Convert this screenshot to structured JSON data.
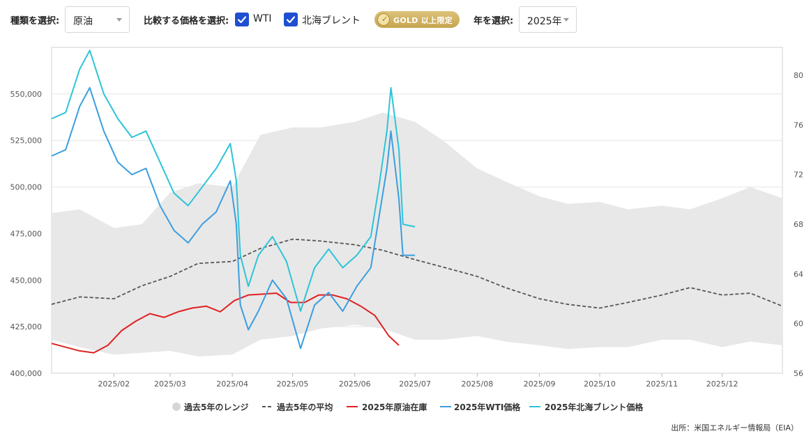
{
  "toolbar": {
    "type_label": "種類を選択:",
    "type_value": "原油",
    "compare_label": "比較する価格を選択:",
    "wti_label": "WTI",
    "brent_label": "北海ブレント",
    "gold_badge": "GOLD 以上限定",
    "year_label": "年を選択:",
    "year_value": "2025年"
  },
  "source": "出所：米国エネルギー情報局（EIA）",
  "colors": {
    "range": "#e8e8e8",
    "avg": "#555555",
    "inventory": "#e02020",
    "wti": "#3a9ee0",
    "brent": "#2cc4d8",
    "check": "#1f4fd1"
  },
  "chart_data": {
    "type": "line",
    "x_axis": {
      "type": "date",
      "range": [
        "2025-01-01",
        "2025-12-31"
      ],
      "tick_labels": [
        "2025/02",
        "2025/03",
        "2025/04",
        "2025/05",
        "2025/06",
        "2025/07",
        "2025/08",
        "2025/09",
        "2025/10",
        "2025/11",
        "2025/12"
      ],
      "tick_dates": [
        "2025-02-01",
        "2025-03-01",
        "2025-04-01",
        "2025-05-01",
        "2025-06-01",
        "2025-07-01",
        "2025-08-01",
        "2025-09-01",
        "2025-10-01",
        "2025-11-01",
        "2025-12-01"
      ]
    },
    "y_left": {
      "range": [
        400000,
        575000
      ],
      "tick_values": [
        400000,
        425000,
        450000,
        475000,
        500000,
        525000,
        550000
      ],
      "tick_labels": [
        "400,000",
        "425,000",
        "450,000",
        "475,000",
        "500,000",
        "525,000",
        "550,000"
      ]
    },
    "y_right": {
      "range": [
        56,
        82.25
      ],
      "tick_values": [
        56,
        60,
        64,
        68,
        72,
        76,
        80
      ],
      "tick_labels": [
        "56",
        "60",
        "64",
        "68",
        "72",
        "76",
        "80"
      ]
    },
    "grid": true,
    "legend_position": "bottom-center",
    "legend": [
      {
        "key": "range",
        "label": "過去5年のレンジ"
      },
      {
        "key": "avg",
        "label": "過去5年の平均"
      },
      {
        "key": "inventory",
        "label": "2025年原油在庫"
      },
      {
        "key": "wti",
        "label": "2025年WTI価格"
      },
      {
        "key": "brent",
        "label": "2025年北海ブレント価格"
      }
    ],
    "series": [
      {
        "key": "range",
        "name": "過去5年のレンジ",
        "kind": "band",
        "axis": "left",
        "x": [
          "2025-01-01",
          "2025-01-15",
          "2025-02-01",
          "2025-02-15",
          "2025-03-01",
          "2025-03-15",
          "2025-04-01",
          "2025-04-15",
          "2025-05-01",
          "2025-05-15",
          "2025-06-01",
          "2025-06-15",
          "2025-07-01",
          "2025-07-15",
          "2025-08-01",
          "2025-08-15",
          "2025-09-01",
          "2025-09-15",
          "2025-10-01",
          "2025-10-15",
          "2025-11-01",
          "2025-11-15",
          "2025-12-01",
          "2025-12-15",
          "2025-12-31"
        ],
        "low": [
          418000,
          414000,
          410000,
          411000,
          412000,
          409000,
          410000,
          418000,
          420000,
          424000,
          426000,
          424000,
          418000,
          418000,
          420000,
          417000,
          415000,
          413000,
          414000,
          414000,
          418000,
          418000,
          414000,
          417000,
          415000
        ],
        "high": [
          486000,
          488000,
          478000,
          480000,
          497000,
          502000,
          500000,
          528000,
          532000,
          532000,
          535000,
          540000,
          535000,
          525000,
          510000,
          503000,
          495000,
          491000,
          492000,
          488000,
          490000,
          488000,
          494000,
          500000,
          494000
        ]
      },
      {
        "key": "avg",
        "name": "過去5年の平均",
        "kind": "line",
        "dashed": true,
        "axis": "left",
        "x": [
          "2025-01-01",
          "2025-01-15",
          "2025-02-01",
          "2025-02-15",
          "2025-03-01",
          "2025-03-15",
          "2025-04-01",
          "2025-04-15",
          "2025-05-01",
          "2025-05-15",
          "2025-06-01",
          "2025-06-15",
          "2025-07-01",
          "2025-07-15",
          "2025-08-01",
          "2025-08-15",
          "2025-09-01",
          "2025-09-15",
          "2025-10-01",
          "2025-10-15",
          "2025-11-01",
          "2025-11-15",
          "2025-12-01",
          "2025-12-15",
          "2025-12-31"
        ],
        "values": [
          437000,
          441000,
          440000,
          447000,
          452000,
          459000,
          460000,
          467000,
          472000,
          471000,
          469000,
          466000,
          461000,
          457000,
          452000,
          446000,
          440000,
          437000,
          435000,
          438000,
          442000,
          446000,
          442000,
          443000,
          436000
        ]
      },
      {
        "key": "inventory",
        "name": "2025年原油在庫",
        "kind": "line",
        "axis": "left",
        "x": [
          "2025-01-01",
          "2025-01-08",
          "2025-01-15",
          "2025-01-22",
          "2025-01-29",
          "2025-02-05",
          "2025-02-12",
          "2025-02-19",
          "2025-02-26",
          "2025-03-05",
          "2025-03-12",
          "2025-03-19",
          "2025-03-26",
          "2025-04-02",
          "2025-04-09",
          "2025-04-16",
          "2025-04-23",
          "2025-04-30",
          "2025-05-07",
          "2025-05-14",
          "2025-05-21",
          "2025-05-28",
          "2025-06-04",
          "2025-06-11",
          "2025-06-18",
          "2025-06-23"
        ],
        "values": [
          416000,
          414000,
          412000,
          411000,
          415000,
          423000,
          428000,
          432000,
          430000,
          433000,
          435000,
          436000,
          433000,
          439000,
          442000,
          442500,
          443000,
          438000,
          438000,
          442000,
          442000,
          440000,
          436000,
          431000,
          420000,
          415000
        ]
      },
      {
        "key": "wti",
        "name": "2025年WTI価格",
        "kind": "line",
        "axis": "right",
        "x": [
          "2025-01-01",
          "2025-01-08",
          "2025-01-15",
          "2025-01-20",
          "2025-01-27",
          "2025-02-03",
          "2025-02-10",
          "2025-02-17",
          "2025-02-24",
          "2025-03-03",
          "2025-03-10",
          "2025-03-17",
          "2025-03-24",
          "2025-03-31",
          "2025-04-03",
          "2025-04-05",
          "2025-04-09",
          "2025-04-14",
          "2025-04-21",
          "2025-04-28",
          "2025-05-05",
          "2025-05-12",
          "2025-05-19",
          "2025-05-26",
          "2025-06-02",
          "2025-06-09",
          "2025-06-13",
          "2025-06-17",
          "2025-06-19",
          "2025-06-23",
          "2025-06-25",
          "2025-07-01"
        ],
        "values": [
          73.5,
          74.0,
          77.5,
          79.0,
          75.5,
          73.0,
          72.0,
          72.5,
          69.5,
          67.5,
          66.5,
          68.0,
          69.0,
          71.5,
          68.0,
          61.5,
          59.5,
          61.0,
          63.5,
          62.0,
          58.0,
          61.5,
          62.5,
          61.0,
          63.0,
          64.5,
          68.5,
          72.5,
          75.5,
          70.0,
          65.5,
          65.5
        ]
      },
      {
        "key": "brent",
        "name": "2025年北海ブレント価格",
        "kind": "line",
        "axis": "right",
        "x": [
          "2025-01-01",
          "2025-01-08",
          "2025-01-15",
          "2025-01-20",
          "2025-01-27",
          "2025-02-03",
          "2025-02-10",
          "2025-02-17",
          "2025-02-24",
          "2025-03-03",
          "2025-03-10",
          "2025-03-17",
          "2025-03-24",
          "2025-03-31",
          "2025-04-03",
          "2025-04-05",
          "2025-04-09",
          "2025-04-14",
          "2025-04-21",
          "2025-04-28",
          "2025-05-05",
          "2025-05-12",
          "2025-05-19",
          "2025-05-26",
          "2025-06-02",
          "2025-06-09",
          "2025-06-13",
          "2025-06-17",
          "2025-06-19",
          "2025-06-23",
          "2025-06-25",
          "2025-07-01"
        ],
        "values": [
          76.5,
          77.0,
          80.5,
          82.0,
          78.5,
          76.5,
          75.0,
          75.5,
          73.0,
          70.5,
          69.5,
          71.0,
          72.5,
          74.5,
          71.5,
          65.5,
          63.0,
          65.5,
          67.0,
          65.0,
          61.0,
          64.5,
          66.0,
          64.5,
          65.5,
          67.0,
          71.0,
          75.5,
          79.0,
          74.0,
          68.0,
          67.8
        ]
      }
    ]
  }
}
